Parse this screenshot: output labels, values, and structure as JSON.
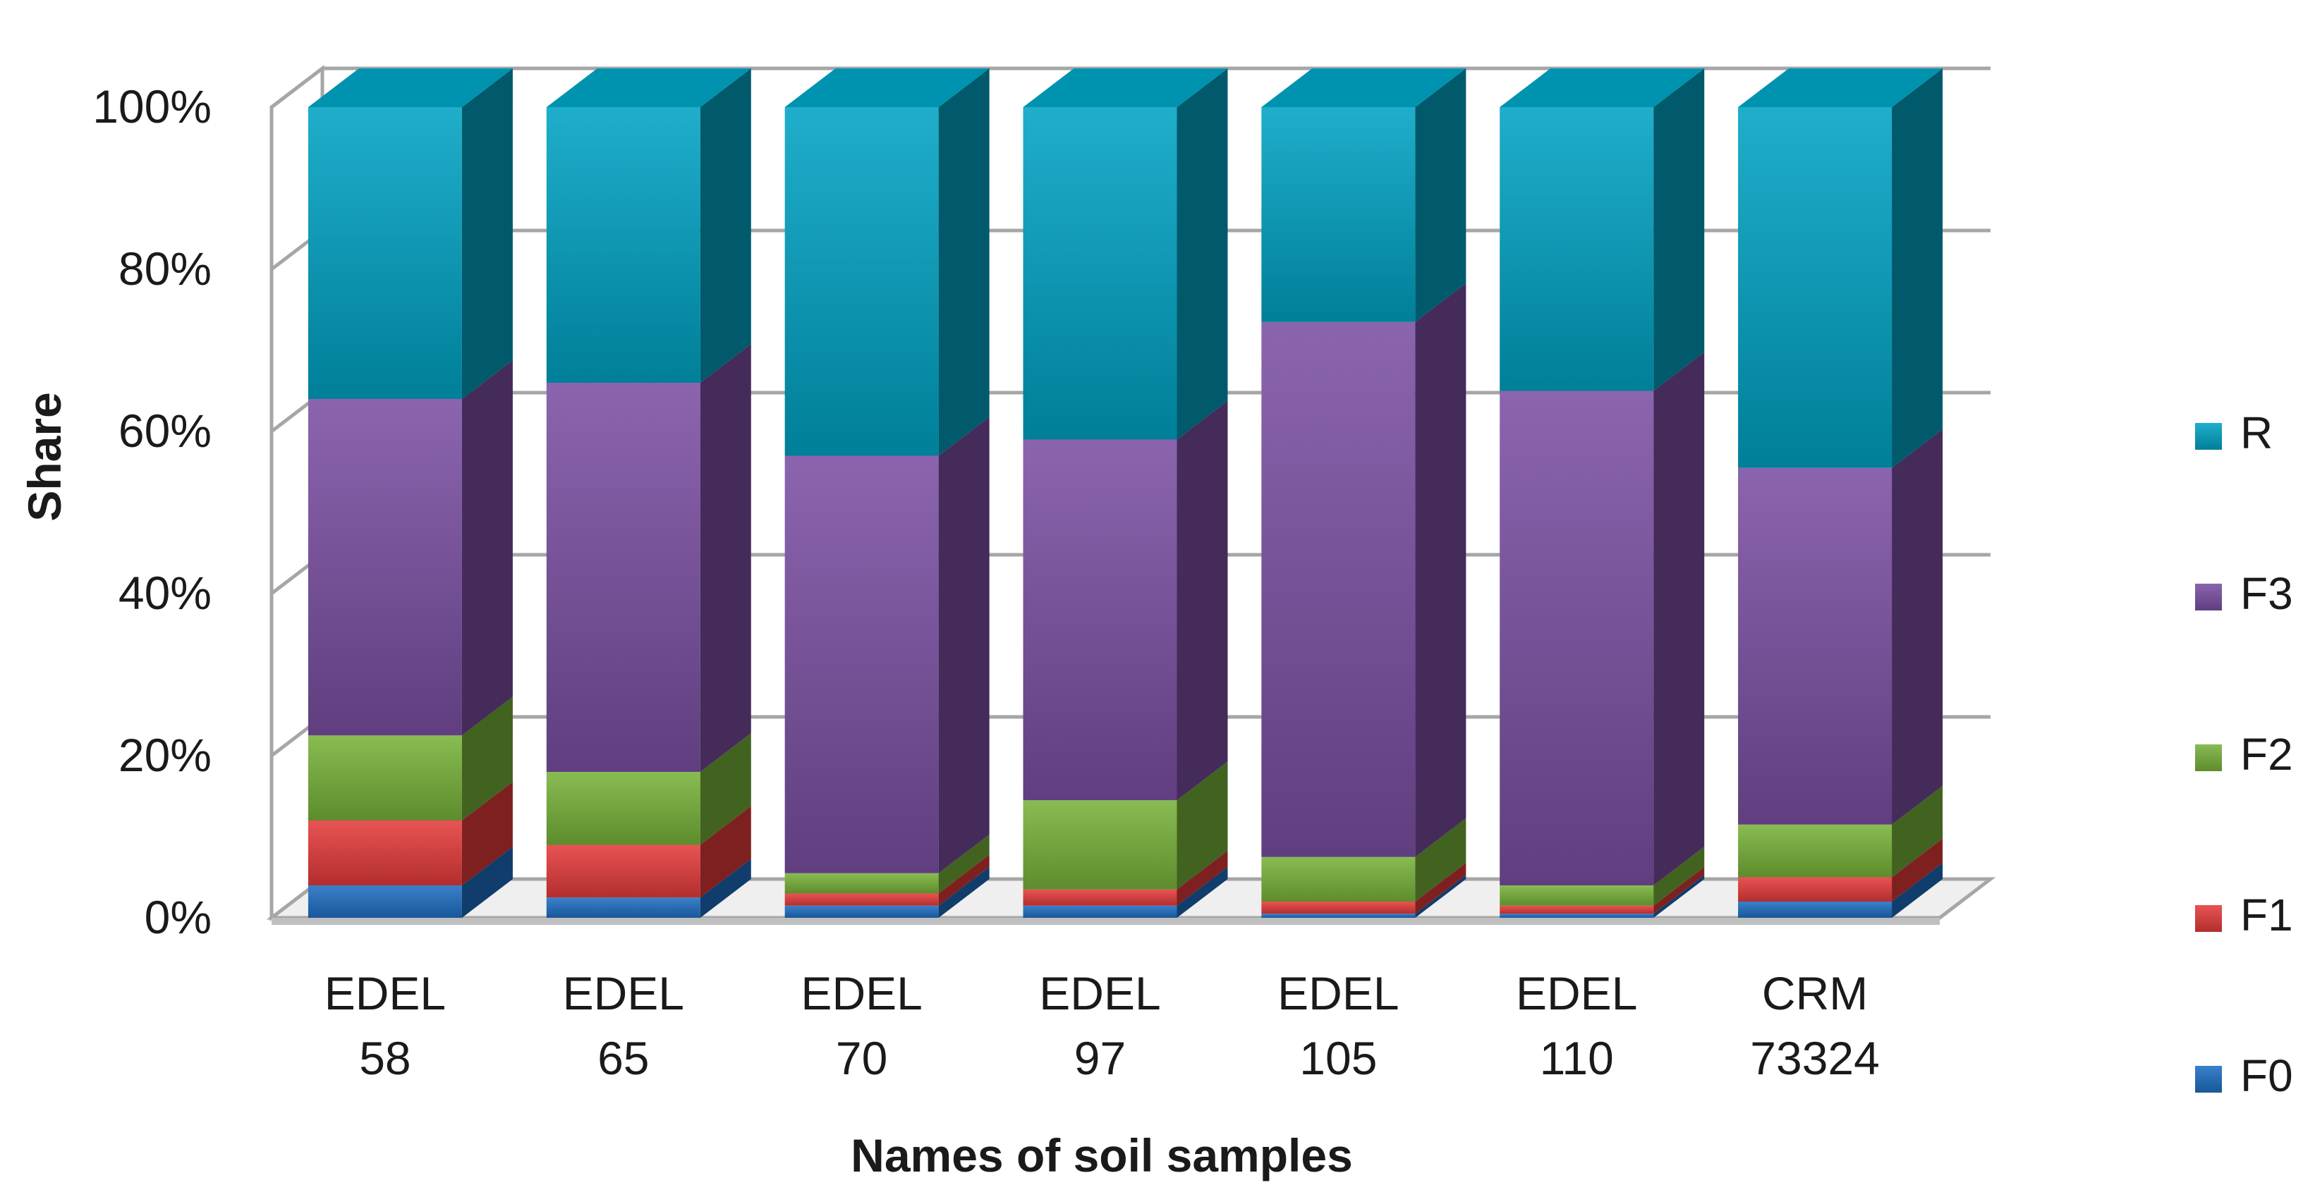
{
  "chart_data": {
    "type": "bar",
    "stacked": true,
    "percent": true,
    "three_d": true,
    "title": "",
    "xlabel": "Names of soil samples",
    "ylabel": "Share",
    "ylim": [
      0,
      100
    ],
    "yticks": [
      "0%",
      "20%",
      "40%",
      "60%",
      "80%",
      "100%"
    ],
    "categories": [
      [
        "EDEL",
        "58"
      ],
      [
        "EDEL",
        "65"
      ],
      [
        "EDEL",
        "70"
      ],
      [
        "EDEL",
        "97"
      ],
      [
        "EDEL",
        "105"
      ],
      [
        "EDEL",
        "110"
      ],
      [
        "CRM",
        "73324"
      ]
    ],
    "series": [
      {
        "name": "F0",
        "color": "#1f6fc4",
        "values": [
          4,
          2.5,
          1.5,
          1.5,
          0.5,
          0.5,
          2
        ]
      },
      {
        "name": "F1",
        "color": "#e63b3b",
        "values": [
          8,
          6.5,
          1.5,
          2,
          1.5,
          1,
          3
        ]
      },
      {
        "name": "F2",
        "color": "#78b33a",
        "values": [
          10.5,
          9,
          2.5,
          11,
          5.5,
          2.5,
          6.5
        ]
      },
      {
        "name": "F3",
        "color": "#7b4fa3",
        "values": [
          41.5,
          48,
          51.5,
          44.5,
          66,
          61,
          44
        ]
      },
      {
        "name": "R",
        "color": "#00a3c4",
        "values": [
          36,
          34,
          43,
          41,
          26.5,
          35,
          44.5
        ]
      }
    ],
    "legend": {
      "position": "right",
      "order": [
        "R",
        "F3",
        "F2",
        "F1",
        "F0"
      ]
    },
    "grid": true
  }
}
